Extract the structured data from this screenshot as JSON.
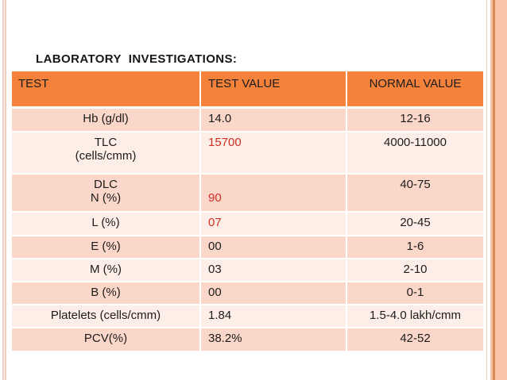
{
  "slide": {
    "title": "LABORATORY  INVESTIGATIONS:"
  },
  "table": {
    "columns": [
      "TEST",
      "TEST VALUE",
      "NORMAL VALUE"
    ],
    "rows": [
      {
        "test": "Hb (g/dl)",
        "value": "14.0",
        "normal": "12-16",
        "value_color": "black"
      },
      {
        "test": "TLC\n(cells/cmm)",
        "value": "15700",
        "normal": "4000-11000",
        "value_color": "red"
      },
      {
        "test": "DLC\nN (%)",
        "value": "\n90",
        "normal": "40-75",
        "value_color": "red"
      },
      {
        "test": "L (%)",
        "value": "07",
        "normal": "20-45",
        "value_color": "red"
      },
      {
        "test": "E (%)",
        "value": "00",
        "normal": "1-6",
        "value_color": "black"
      },
      {
        "test": "M (%)",
        "value": "03",
        "normal": "2-10",
        "value_color": "black"
      },
      {
        "test": "B (%)",
        "value": "00",
        "normal": "0-1",
        "value_color": "black"
      },
      {
        "test": "Platelets (cells/cmm)",
        "value": "1.84",
        "normal": "1.5-4.0 lakh/cmm",
        "value_color": "black"
      },
      {
        "test": "PCV(%)",
        "value": "38.2%",
        "normal": "42-52",
        "value_color": "black"
      }
    ]
  },
  "colors": {
    "header_orange": "#f5823a",
    "row_dark_pink": "#fbd7c9",
    "row_light_pink": "#fdeee8",
    "highlight_red": "#cf2e24",
    "frame_salmon": "#fac3a7",
    "frame_dark_line": "#de8a57",
    "frame_thin_pink": "#f0cabd"
  }
}
